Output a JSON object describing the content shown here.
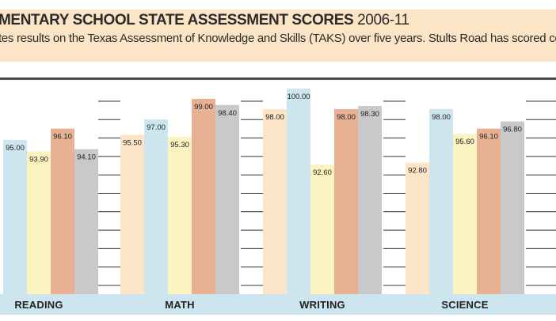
{
  "header": {
    "title_main": "MENTARY SCHOOL STATE ASSESSMENT SCORES",
    "title_years": "2006-11",
    "description": "tes results on the Texas Assessment of Knowledge and Skills (TAKS) over five years. Stults Road has scored cons e."
  },
  "colors": {
    "header_bg": "#fce5c6",
    "footer_bg": "#cde5ee",
    "series": [
      "#fce5c6",
      "#cde5ee",
      "#fcf4c0",
      "#e8b193",
      "#c9c9c9"
    ]
  },
  "chart_data": {
    "type": "bar",
    "categories": [
      "READING",
      "MATH",
      "WRITING",
      "SCIENCE"
    ],
    "series": [
      {
        "values": [
          null,
          95.5,
          98.0,
          92.8
        ]
      },
      {
        "values": [
          95.0,
          97.0,
          100.0,
          98.0
        ]
      },
      {
        "values": [
          93.9,
          95.3,
          92.6,
          95.6
        ]
      },
      {
        "values": [
          96.1,
          99.0,
          98.0,
          96.1
        ]
      },
      {
        "values": [
          94.1,
          98.4,
          98.3,
          96.8
        ]
      }
    ],
    "value_labels": [
      [
        null,
        "95.50",
        "98.00",
        "92.80"
      ],
      [
        "95.00",
        "97.00",
        "100.00",
        "98.00"
      ],
      [
        "93.90",
        "95.30",
        "92.60",
        "95.60"
      ],
      [
        "96.10",
        "99.00",
        "98.00",
        "96.10"
      ],
      [
        "94.10",
        "98.40",
        "98.30",
        "96.80"
      ]
    ],
    "grid": true,
    "legend": "none"
  }
}
